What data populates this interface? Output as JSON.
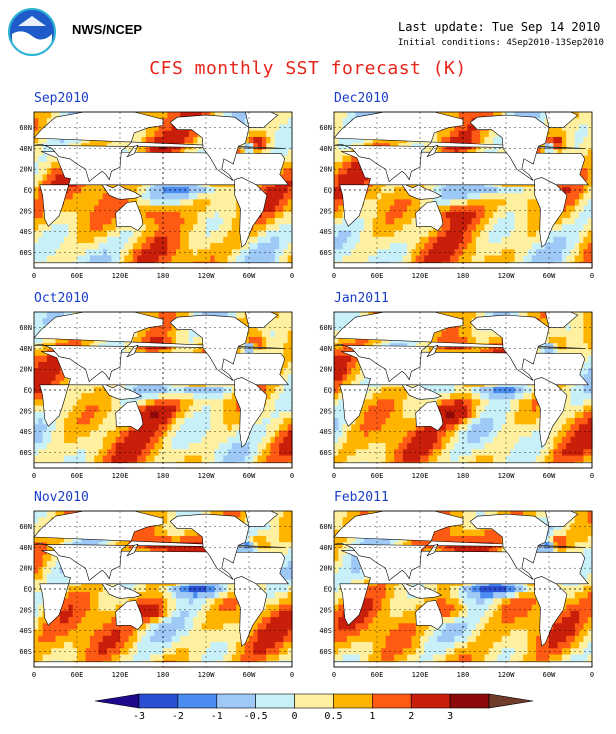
{
  "header": {
    "org": "NWS/NCEP",
    "last_update": "Last update: Tue Sep 14 2010",
    "initial_conditions": "Initial conditions: 4Sep2010-13Sep2010",
    "title": "CFS monthly SST forecast (K)"
  },
  "panels": [
    {
      "title": "Sep2010",
      "mode": 0
    },
    {
      "title": "Dec2010",
      "mode": 1
    },
    {
      "title": "Oct2010",
      "mode": 2
    },
    {
      "title": "Jan2011",
      "mode": 3
    },
    {
      "title": "Nov2010",
      "mode": 4
    },
    {
      "title": "Feb2011",
      "mode": 5
    }
  ],
  "lat_labels": [
    "60N",
    "40N",
    "20N",
    "EQ",
    "20S",
    "40S",
    "60S"
  ],
  "lon_labels": [
    "0",
    "60E",
    "120E",
    "180",
    "120W",
    "60W",
    "0"
  ],
  "colorbar": {
    "labels": [
      "-3",
      "-2",
      "-1",
      "-0.5",
      "0",
      "0.5",
      "1",
      "2",
      "3"
    ],
    "colors": [
      "#1e0a8c",
      "#2a4fd4",
      "#4a8cf0",
      "#9ec8f5",
      "#c8f0f8",
      "#fff0a0",
      "#ffb400",
      "#ff5a14",
      "#c81e0a",
      "#8c0a0a",
      "#6e3c28"
    ]
  }
}
